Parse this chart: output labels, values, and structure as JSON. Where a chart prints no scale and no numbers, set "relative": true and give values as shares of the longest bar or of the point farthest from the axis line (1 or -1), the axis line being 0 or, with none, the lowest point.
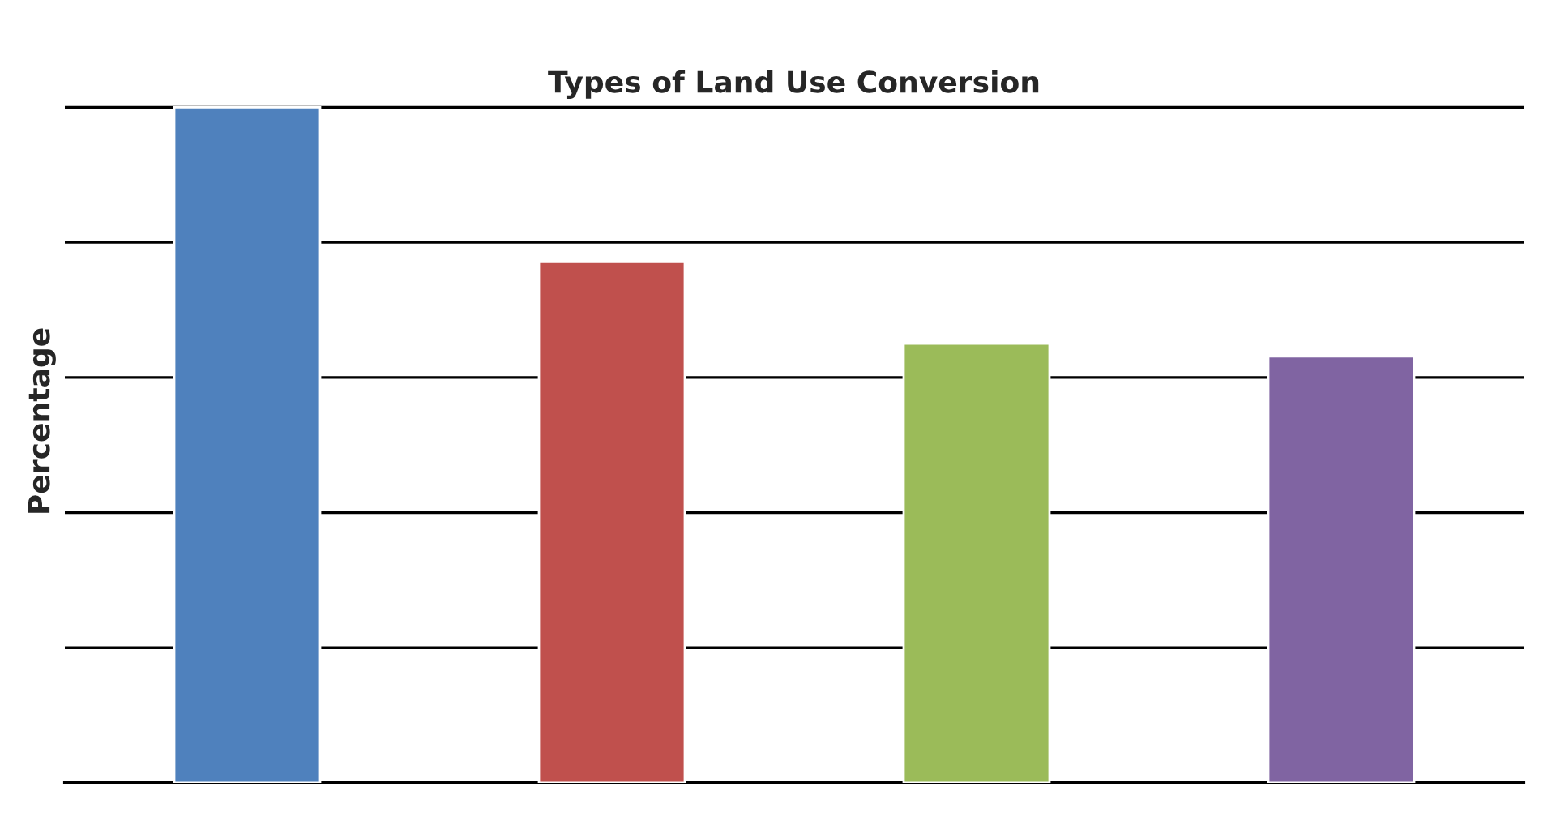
{
  "chart_data": {
    "type": "bar",
    "title": "Types of Land Use Conversion",
    "ylabel": "Percentage",
    "relative": true,
    "categories": [
      null,
      null,
      null,
      null
    ],
    "values": [
      1,
      0.772,
      0.65,
      0.631
    ],
    "colors": [
      "#4f81bd",
      "#c0504d",
      "#9bbb59",
      "#8064a2"
    ],
    "grid": "y",
    "tick_labels": false
  }
}
